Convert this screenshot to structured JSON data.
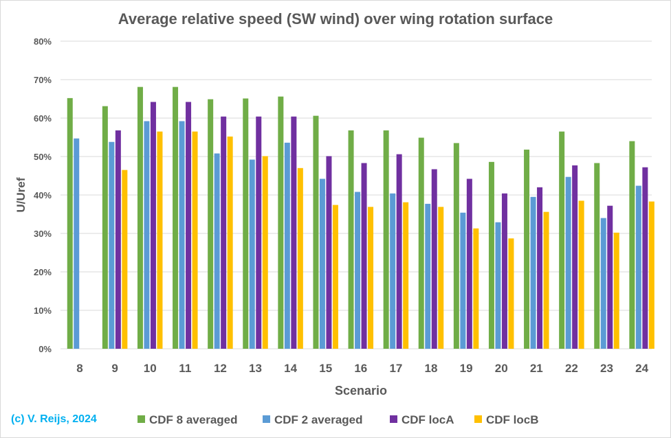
{
  "chart_data": {
    "type": "bar",
    "title": "Average relative speed (SW wind) over wing rotation surface",
    "xlabel": "Scenario",
    "ylabel": "U/Uref",
    "ylim": [
      0,
      0.8
    ],
    "yticks": [
      "0%",
      "10%",
      "20%",
      "30%",
      "40%",
      "50%",
      "60%",
      "70%",
      "80%"
    ],
    "grid": true,
    "legend_position": "bottom",
    "categories": [
      "8",
      "9",
      "10",
      "11",
      "12",
      "13",
      "14",
      "15",
      "16",
      "17",
      "18",
      "19",
      "20",
      "21",
      "22",
      "23",
      "24"
    ],
    "series": [
      {
        "name": "CDF 8 averaged",
        "color": "#70AD47",
        "values": [
          0.652,
          0.631,
          0.681,
          0.681,
          0.649,
          0.651,
          0.656,
          0.606,
          0.568,
          0.568,
          0.549,
          0.535,
          0.486,
          0.518,
          0.565,
          0.483,
          0.54
        ]
      },
      {
        "name": "CDF 2 averaged",
        "color": "#5B9BD5",
        "values": [
          0.547,
          0.538,
          0.592,
          0.592,
          0.508,
          0.492,
          0.536,
          0.442,
          0.408,
          0.404,
          0.377,
          0.354,
          0.329,
          0.395,
          0.447,
          0.34,
          0.424
        ]
      },
      {
        "name": "CDF locA",
        "color": "#7030A0",
        "values": [
          null,
          0.568,
          0.642,
          0.642,
          0.604,
          0.604,
          0.604,
          0.501,
          0.483,
          0.506,
          0.467,
          0.442,
          0.404,
          0.42,
          0.477,
          0.372,
          0.472
        ]
      },
      {
        "name": "CDF locB",
        "color": "#FFC000",
        "values": [
          null,
          0.465,
          0.565,
          0.565,
          0.552,
          0.501,
          0.47,
          0.374,
          0.369,
          0.381,
          0.369,
          0.313,
          0.287,
          0.356,
          0.385,
          0.302,
          0.383
        ]
      }
    ]
  },
  "credit": "(c) V. Reijs, 2024"
}
